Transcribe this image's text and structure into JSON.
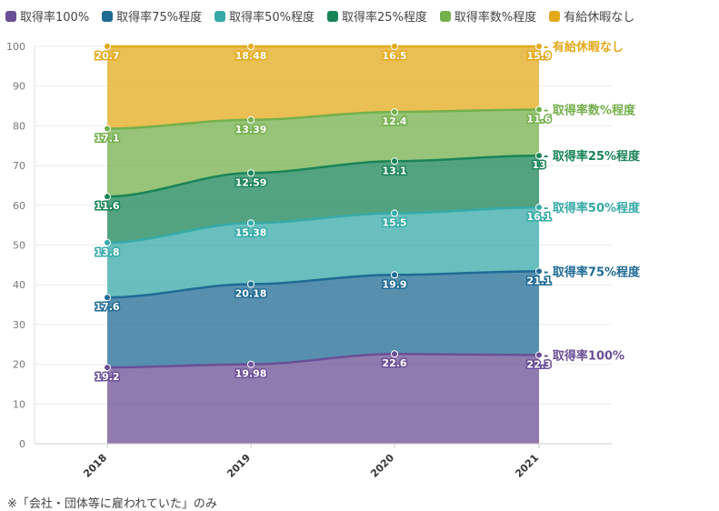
{
  "chart_data": {
    "type": "area",
    "stacked": true,
    "categories": [
      "2018",
      "2019",
      "2020",
      "2021"
    ],
    "ylim": [
      0,
      100
    ],
    "yticks": [
      0,
      10,
      20,
      30,
      40,
      50,
      60,
      70,
      80,
      90,
      100
    ],
    "grid": true,
    "legend_position": "top-left",
    "series": [
      {
        "name": "取得率100%",
        "end_label": "取得率100%",
        "color": "#6b4f96",
        "values": [
          19.2,
          19.98,
          22.6,
          22.3
        ],
        "value_labels": [
          "19.2",
          "19.98",
          "22.6",
          "22.3"
        ]
      },
      {
        "name": "取得率75%程度",
        "end_label": "取得率75%程度",
        "color": "#1f6b94",
        "values": [
          17.6,
          20.18,
          19.9,
          21.1
        ],
        "value_labels": [
          "17.6",
          "20.18",
          "19.9",
          "21.1"
        ]
      },
      {
        "name": "取得率50%程度",
        "end_label": "取得率50%程度",
        "color": "#35aaa8",
        "values": [
          13.8,
          15.38,
          15.5,
          16.1
        ],
        "value_labels": [
          "13.8",
          "15.38",
          "15.5",
          "16.1"
        ]
      },
      {
        "name": "取得率25%程度",
        "end_label": "取得率25%程度",
        "color": "#1a8457",
        "values": [
          11.6,
          12.59,
          13.1,
          13
        ],
        "value_labels": [
          "11.6",
          "12.59",
          "13.1",
          "13"
        ]
      },
      {
        "name": "取得率数%程度",
        "end_label": "取得率数%程度",
        "color": "#74b04c",
        "values": [
          17.1,
          13.39,
          12.4,
          11.6
        ],
        "value_labels": [
          "17.1",
          "13.39",
          "12.4",
          "11.6"
        ]
      },
      {
        "name": "有給休暇なし",
        "end_label": "有給休暇なし",
        "color": "#e3a91a",
        "values": [
          20.7,
          18.48,
          16.5,
          15.9
        ],
        "value_labels": [
          "20.7",
          "18.48",
          "16.5",
          "15.9"
        ]
      }
    ],
    "footnote": "※「会社・団体等に雇われていた」のみ"
  }
}
